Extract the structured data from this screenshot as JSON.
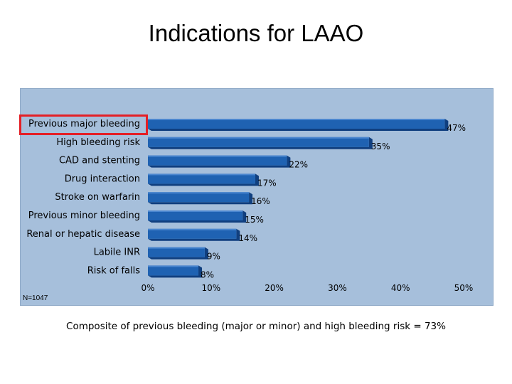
{
  "title": "Indications for LAAO",
  "sample_size": "N=1047",
  "caption": "Composite of previous bleeding (major or minor) and high bleeding risk = 73%",
  "colors": {
    "panel": "#a6bfdb",
    "bar": "#1f62b2",
    "bar_dark": "#103f7f",
    "highlight": "#e41f26"
  },
  "chart_data": {
    "type": "bar",
    "orientation": "horizontal",
    "categories": [
      "Previous major bleeding",
      "High bleeding risk",
      "CAD and stenting",
      "Drug interaction",
      "Stroke on warfarin",
      "Previous minor bleeding",
      "Renal or hepatic disease",
      "Labile INR",
      "Risk of falls"
    ],
    "values": [
      47,
      35,
      22,
      17,
      16,
      15,
      14,
      9,
      8
    ],
    "value_labels": [
      "47%",
      "35%",
      "22%",
      "17%",
      "16%",
      "15%",
      "14%",
      "9%",
      "8%"
    ],
    "xlim": [
      0,
      50
    ],
    "xticks": [
      0,
      10,
      20,
      30,
      40,
      50
    ],
    "xtick_labels": [
      "0%",
      "10%",
      "20%",
      "30%",
      "40%",
      "50%"
    ],
    "highlighted_category": "Previous major bleeding",
    "title": "",
    "xlabel": "",
    "ylabel": "",
    "grid": false
  }
}
